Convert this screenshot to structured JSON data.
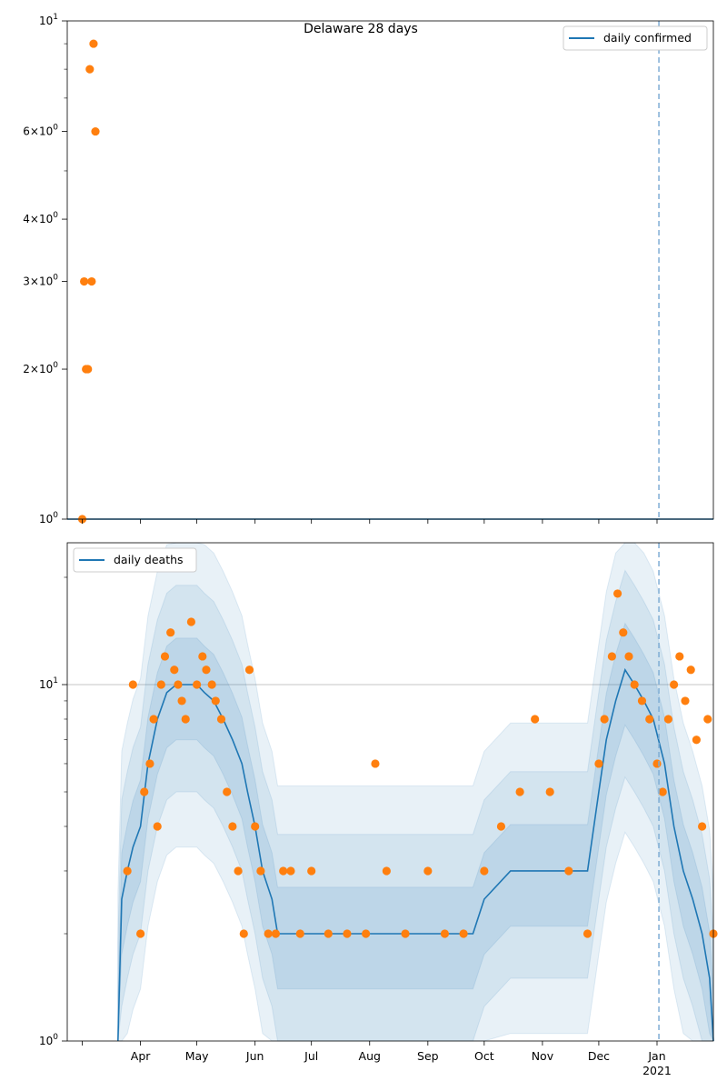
{
  "chart_data": [
    {
      "type": "line",
      "title": "Delaware 28 days",
      "yscale": "log",
      "ylim": [
        1,
        10
      ],
      "xlim": [
        "2020-02-22",
        "2021-01-31"
      ],
      "grid": false,
      "legend_position": "top-right",
      "y_ticks": [
        {
          "value": 1,
          "label": "10^0"
        },
        {
          "value": 2,
          "label": "2×10^0"
        },
        {
          "value": 3,
          "label": "3×10^0"
        },
        {
          "value": 4,
          "label": "4×10^0"
        },
        {
          "value": 6,
          "label": "6×10^0"
        },
        {
          "value": 10,
          "label": "10^1"
        }
      ],
      "reference_line": {
        "x": "2021-01-02",
        "style": "dashed"
      },
      "series": [
        {
          "name": "daily confirmed",
          "kind": "line",
          "color": "#1f77b4",
          "x": [
            "2020-02-22",
            "2021-01-31"
          ],
          "y": [
            1,
            1
          ]
        },
        {
          "kind": "scatter",
          "color": "#ff7f0e",
          "x": [
            "2020-03-01",
            "2020-03-02",
            "2020-03-03",
            "2020-03-04",
            "2020-03-05",
            "2020-03-06",
            "2020-03-07",
            "2020-03-08"
          ],
          "y": [
            1,
            3,
            2,
            2,
            8,
            3,
            9,
            6
          ]
        }
      ]
    },
    {
      "type": "line",
      "yscale": "log",
      "ylim": [
        1,
        25
      ],
      "xlim": [
        "2020-02-22",
        "2021-01-31"
      ],
      "grid": "y-major",
      "legend_position": "top-left",
      "y_ticks": [
        {
          "value": 1,
          "label": "10^0"
        },
        {
          "value": 10,
          "label": "10^1"
        }
      ],
      "x_ticks": [
        "Apr",
        "May",
        "Jun",
        "Jul",
        "Aug",
        "Sep",
        "Oct",
        "Nov",
        "Dec",
        "Jan"
      ],
      "x_year_label": "2021",
      "reference_line": {
        "x": "2021-01-02",
        "style": "dashed"
      },
      "series": [
        {
          "name": "daily deaths",
          "kind": "line",
          "color": "#1f77b4",
          "x": [
            "2020-03-20",
            "2020-03-22",
            "2020-03-25",
            "2020-03-28",
            "2020-04-01",
            "2020-04-05",
            "2020-04-10",
            "2020-04-15",
            "2020-04-20",
            "2020-04-25",
            "2020-05-01",
            "2020-05-05",
            "2020-05-10",
            "2020-05-15",
            "2020-05-20",
            "2020-05-25",
            "2020-05-28",
            "2020-06-01",
            "2020-06-05",
            "2020-06-10",
            "2020-06-13",
            "2020-06-20",
            "2020-07-01",
            "2020-07-15",
            "2020-08-01",
            "2020-08-15",
            "2020-09-01",
            "2020-09-15",
            "2020-09-25",
            "2020-10-01",
            "2020-10-15",
            "2020-11-01",
            "2020-11-15",
            "2020-11-22",
            "2020-11-25",
            "2020-12-01",
            "2020-12-05",
            "2020-12-10",
            "2020-12-15",
            "2020-12-20",
            "2020-12-25",
            "2020-12-30",
            "2021-01-05",
            "2021-01-10",
            "2021-01-15",
            "2021-01-20",
            "2021-01-25",
            "2021-01-29",
            "2021-01-31"
          ],
          "y": [
            1,
            2.5,
            3,
            3.5,
            4,
            6,
            8,
            9.5,
            10,
            10,
            10,
            9.5,
            9,
            8,
            7,
            6,
            5,
            4,
            3,
            2.5,
            2,
            2,
            2,
            2,
            2,
            2,
            2,
            2,
            2,
            2.5,
            3,
            3,
            3,
            3,
            3,
            5,
            7,
            9,
            11,
            10,
            9,
            8,
            6,
            4,
            3,
            2.5,
            2,
            1.5,
            1
          ]
        },
        {
          "kind": "scatter",
          "color": "#ff7f0e",
          "x": [
            "2020-03-25",
            "2020-03-28",
            "2020-04-01",
            "2020-04-03",
            "2020-04-06",
            "2020-04-08",
            "2020-04-10",
            "2020-04-12",
            "2020-04-14",
            "2020-04-17",
            "2020-04-19",
            "2020-04-21",
            "2020-04-23",
            "2020-04-25",
            "2020-04-28",
            "2020-05-01",
            "2020-05-04",
            "2020-05-06",
            "2020-05-09",
            "2020-05-11",
            "2020-05-14",
            "2020-05-17",
            "2020-05-20",
            "2020-05-23",
            "2020-05-26",
            "2020-05-29",
            "2020-06-01",
            "2020-06-04",
            "2020-06-08",
            "2020-06-12",
            "2020-06-16",
            "2020-06-20",
            "2020-06-25",
            "2020-07-01",
            "2020-07-10",
            "2020-07-20",
            "2020-07-30",
            "2020-08-04",
            "2020-08-10",
            "2020-08-20",
            "2020-09-01",
            "2020-09-10",
            "2020-09-20",
            "2020-10-01",
            "2020-10-10",
            "2020-10-20",
            "2020-10-28",
            "2020-11-05",
            "2020-11-15",
            "2020-11-25",
            "2020-12-01",
            "2020-12-04",
            "2020-12-08",
            "2020-12-11",
            "2020-12-14",
            "2020-12-17",
            "2020-12-20",
            "2020-12-24",
            "2020-12-28",
            "2021-01-01",
            "2021-01-04",
            "2021-01-07",
            "2021-01-10",
            "2021-01-13",
            "2021-01-16",
            "2021-01-19",
            "2021-01-22",
            "2021-01-25",
            "2021-01-28",
            "2021-01-31"
          ],
          "y": [
            3,
            10,
            2,
            5,
            6,
            8,
            4,
            10,
            12,
            14,
            11,
            10,
            9,
            8,
            15,
            10,
            12,
            11,
            10,
            9,
            8,
            5,
            4,
            3,
            2,
            11,
            4,
            3,
            2,
            2,
            3,
            3,
            2,
            3,
            2,
            2,
            2,
            6,
            3,
            2,
            3,
            2,
            2,
            3,
            4,
            5,
            8,
            5,
            3,
            2,
            6,
            8,
            12,
            18,
            14,
            12,
            10,
            9,
            8,
            6,
            5,
            8,
            10,
            12,
            9,
            11,
            7,
            4,
            8,
            2
          ]
        },
        {
          "kind": "band",
          "color": "#1f77b4",
          "description": "shaded confidence bands"
        }
      ]
    }
  ],
  "legend": {
    "top_label": "daily confirmed",
    "bottom_label": "daily deaths"
  }
}
